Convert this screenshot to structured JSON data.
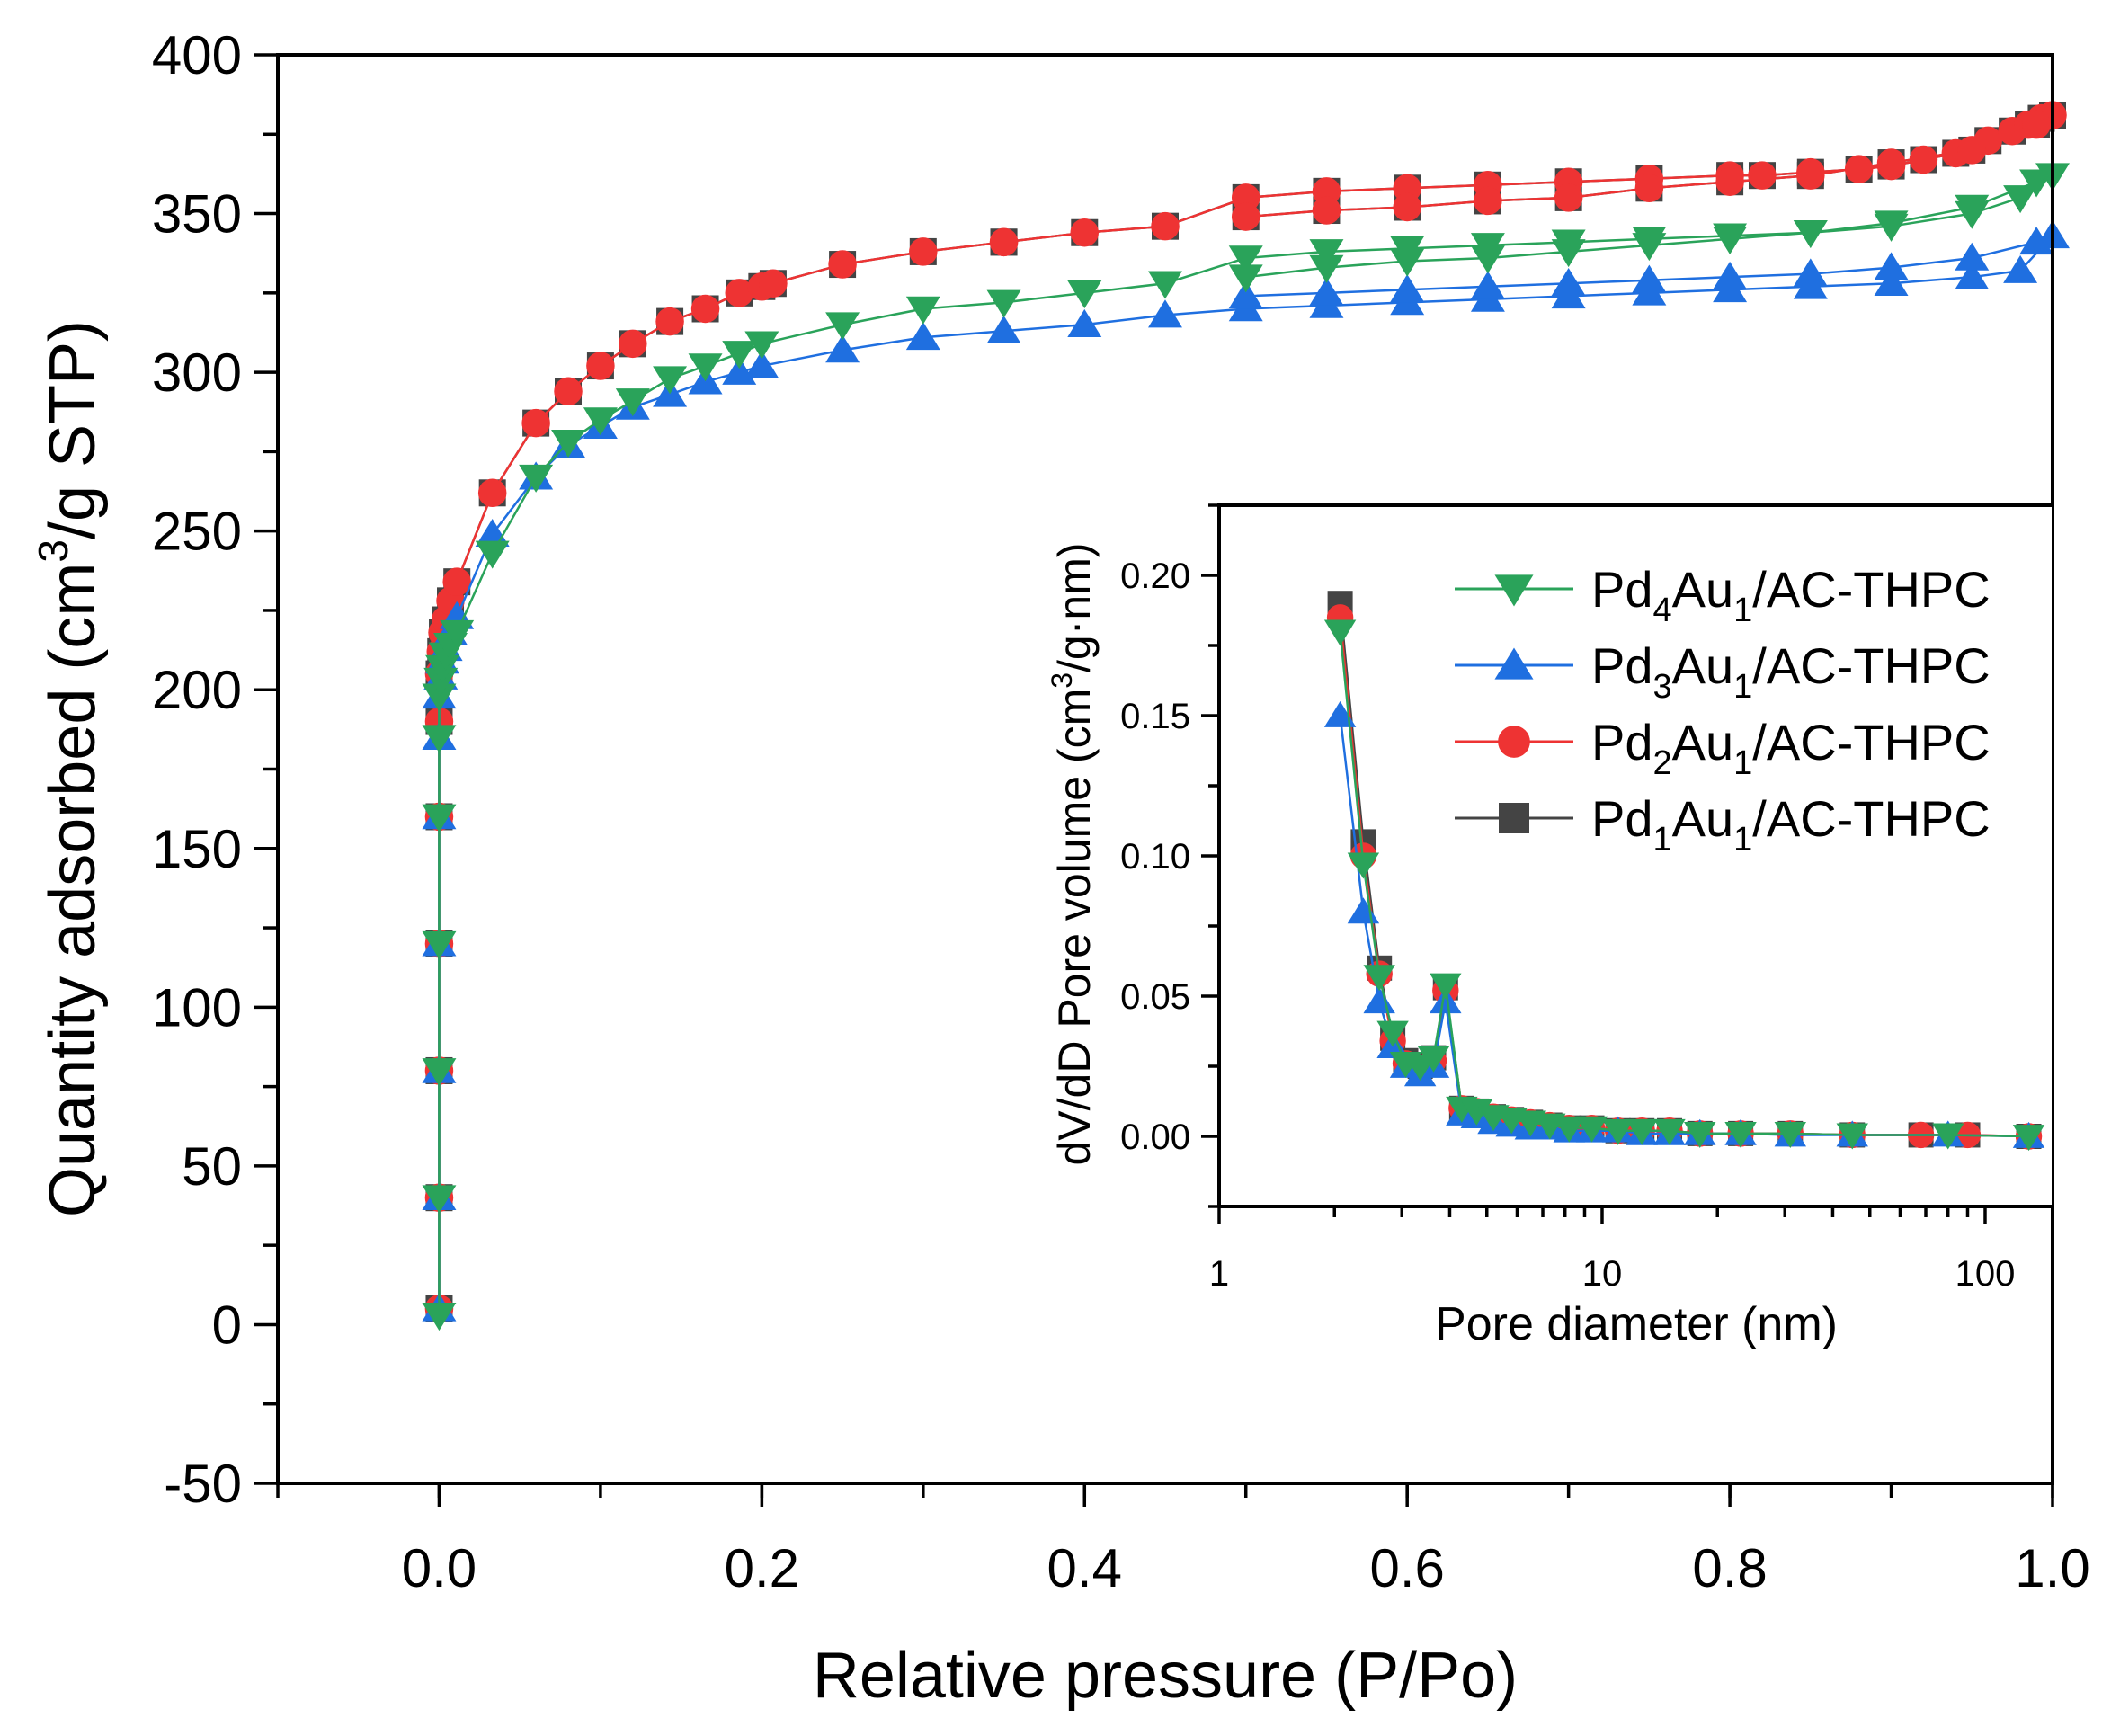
{
  "chart_data": [
    {
      "id": "main",
      "type": "line",
      "xlabel": "Relative pressure (P/Po)",
      "ylabel_parts": [
        "Quantity adsorbed (cm",
        "3",
        "/g STP)"
      ],
      "xlim": [
        -0.1,
        1.0
      ],
      "ylim": [
        -50,
        400
      ],
      "xticks": [
        0.0,
        0.2,
        0.4,
        0.6,
        0.8,
        1.0
      ],
      "xtick_labels": [
        "0.0",
        "0.2",
        "0.4",
        "0.6",
        "0.8",
        "1.0"
      ],
      "yticks": [
        -50,
        0,
        50,
        100,
        150,
        200,
        250,
        300,
        350,
        400
      ],
      "ytick_labels": [
        "-50",
        "0",
        "50",
        "100",
        "150",
        "200",
        "250",
        "300",
        "350",
        "400"
      ],
      "series": [
        {
          "name": "Pd1Au1/AC-THPC",
          "color": "#444444",
          "marker": "square",
          "x": [
            0.0,
            0.0,
            0.0,
            0.0,
            0.0,
            0.0,
            0.0,
            0.001,
            0.002,
            0.004,
            0.007,
            0.011,
            0.033,
            0.06,
            0.08,
            0.1,
            0.12,
            0.143,
            0.165,
            0.186,
            0.2,
            0.207,
            0.25,
            0.3,
            0.35,
            0.35,
            0.4,
            0.45,
            0.5,
            0.55,
            0.6,
            0.65,
            0.7,
            0.75,
            0.8,
            0.82,
            0.85,
            0.88,
            0.9,
            0.92,
            0.94,
            0.96,
            0.975,
            0.985,
            0.993,
            1.0,
            0.99,
            0.95,
            0.9,
            0.85,
            0.8,
            0.75,
            0.7,
            0.65,
            0.6,
            0.55,
            0.5
          ],
          "y": [
            5,
            40,
            80,
            120,
            160,
            190,
            205,
            212,
            218,
            222,
            228,
            234,
            262,
            284,
            294,
            302,
            309,
            316,
            320,
            325,
            327,
            328,
            334,
            338,
            341,
            341,
            344,
            346,
            355,
            357,
            358,
            359,
            360,
            361,
            362,
            362,
            363,
            364,
            365,
            367,
            369,
            373,
            376,
            378,
            380,
            381,
            378,
            370,
            366,
            362,
            360,
            358,
            355,
            354,
            352,
            351,
            349
          ]
        },
        {
          "name": "Pd2Au1/AC-THPC",
          "color": "#ee3333",
          "marker": "circle",
          "x": [
            0.0,
            0.0,
            0.0,
            0.0,
            0.0,
            0.0,
            0.0,
            0.001,
            0.002,
            0.004,
            0.007,
            0.011,
            0.033,
            0.06,
            0.08,
            0.1,
            0.12,
            0.143,
            0.165,
            0.186,
            0.2,
            0.207,
            0.25,
            0.3,
            0.35,
            0.35,
            0.4,
            0.45,
            0.5,
            0.55,
            0.6,
            0.65,
            0.7,
            0.75,
            0.8,
            0.82,
            0.85,
            0.88,
            0.9,
            0.92,
            0.94,
            0.96,
            0.975,
            0.985,
            0.993,
            1.0,
            0.99,
            0.95,
            0.9,
            0.85,
            0.8,
            0.75,
            0.7,
            0.65,
            0.6,
            0.55,
            0.5
          ],
          "y": [
            5,
            40,
            80,
            120,
            160,
            190,
            205,
            212,
            218,
            222,
            228,
            234,
            262,
            284,
            294,
            302,
            309,
            316,
            320,
            325,
            327,
            328,
            334,
            338,
            341,
            341,
            344,
            346,
            355,
            357,
            358,
            359,
            360,
            361,
            362,
            362,
            363,
            364,
            365,
            367,
            369,
            373,
            376,
            378,
            380,
            381,
            378,
            370,
            366,
            362,
            360,
            358,
            355,
            354,
            352,
            351,
            349
          ]
        },
        {
          "name": "Pd3Au1/AC-THPC",
          "color": "#1f6fe0",
          "marker": "triangle-up",
          "x": [
            0.0,
            0.0,
            0.0,
            0.0,
            0.0,
            0.0,
            0.0,
            0.001,
            0.002,
            0.004,
            0.007,
            0.011,
            0.033,
            0.06,
            0.08,
            0.1,
            0.12,
            0.143,
            0.165,
            0.186,
            0.2,
            0.25,
            0.3,
            0.35,
            0.4,
            0.45,
            0.5,
            0.55,
            0.6,
            0.65,
            0.7,
            0.75,
            0.8,
            0.85,
            0.9,
            0.95,
            0.98,
            1.0,
            0.99,
            0.95,
            0.9,
            0.85,
            0.8,
            0.75,
            0.7,
            0.65,
            0.6,
            0.55,
            0.5
          ],
          "y": [
            5,
            40,
            80,
            120,
            160,
            185,
            198,
            204,
            209,
            213,
            218,
            223,
            249,
            267,
            277,
            283,
            289,
            293,
            297,
            300,
            302,
            307,
            311,
            313,
            315,
            318,
            320,
            321,
            322,
            323,
            324,
            325,
            326,
            327,
            328,
            330,
            332,
            343,
            341,
            336,
            333,
            331,
            330,
            329,
            328,
            327,
            326,
            325,
            324
          ]
        },
        {
          "name": "Pd4Au1/AC-THPC",
          "color": "#2aa35a",
          "marker": "triangle-down",
          "x": [
            0.0,
            0.0,
            0.0,
            0.0,
            0.0,
            0.0,
            0.0,
            0.001,
            0.002,
            0.004,
            0.007,
            0.011,
            0.033,
            0.06,
            0.08,
            0.1,
            0.12,
            0.143,
            0.165,
            0.186,
            0.2,
            0.25,
            0.3,
            0.35,
            0.4,
            0.45,
            0.5,
            0.55,
            0.6,
            0.65,
            0.7,
            0.75,
            0.8,
            0.85,
            0.9,
            0.95,
            0.98,
            1.0,
            0.99,
            0.95,
            0.9,
            0.85,
            0.8,
            0.75,
            0.7,
            0.65,
            0.6,
            0.55,
            0.5
          ],
          "y": [
            3,
            40,
            80,
            120,
            160,
            185,
            198,
            203,
            207,
            211,
            214,
            218,
            243,
            267,
            278,
            285,
            291,
            298,
            302,
            306,
            309,
            315,
            320,
            322,
            325,
            328,
            336,
            338,
            339,
            340,
            341,
            342,
            343,
            344,
            346,
            350,
            355,
            362,
            360,
            352,
            347,
            344,
            342,
            340,
            338,
            336,
            335,
            333,
            330
          ]
        }
      ]
    },
    {
      "id": "inset",
      "type": "line",
      "xscale": "log",
      "xlabel": "Pore diameter (nm)",
      "ylabel_parts": [
        "dV/dD Pore volume (cm",
        "3",
        "/g·nm)"
      ],
      "xlim": [
        1,
        150
      ],
      "ylim": [
        -0.025,
        0.225
      ],
      "xticks": [
        1,
        10,
        100
      ],
      "xtick_labels": [
        "1",
        "10",
        "100"
      ],
      "yticks": [
        0.0,
        0.05,
        0.1,
        0.15,
        0.2
      ],
      "ytick_labels": [
        "0.00",
        "0.05",
        "0.10",
        "0.15",
        "0.20"
      ],
      "legend": {
        "location": "top-right",
        "entries": [
          {
            "series": "Pd4Au1/AC-THPC",
            "prefix": "Pd",
            "sub1": "4",
            "mid": "Au",
            "sub2": "1",
            "suffix": "/AC-THPC"
          },
          {
            "series": "Pd3Au1/AC-THPC",
            "prefix": "Pd",
            "sub1": "3",
            "mid": "Au",
            "sub2": "1",
            "suffix": "/AC-THPC"
          },
          {
            "series": "Pd2Au1/AC-THPC",
            "prefix": "Pd",
            "sub1": "2",
            "mid": "Au",
            "sub2": "1",
            "suffix": "/AC-THPC"
          },
          {
            "series": "Pd1Au1/AC-THPC",
            "prefix": "Pd",
            "sub1": "1",
            "mid": "Au",
            "sub2": "1",
            "suffix": "/AC-THPC"
          }
        ]
      },
      "series": [
        {
          "name": "Pd1Au1/AC-THPC",
          "color": "#444444",
          "marker": "square",
          "x": [
            2.07,
            2.38,
            2.62,
            2.84,
            3.07,
            3.35,
            3.63,
            3.9,
            4.3,
            4.7,
            5.2,
            5.8,
            6.5,
            7.3,
            8.2,
            9.4,
            11,
            12.7,
            15,
            18,
            23,
            31,
            45,
            68,
            90,
            130
          ],
          "y": [
            0.19,
            0.105,
            0.06,
            0.035,
            0.027,
            0.025,
            0.028,
            0.053,
            0.01,
            0.009,
            0.007,
            0.006,
            0.005,
            0.004,
            0.003,
            0.003,
            0.002,
            0.002,
            0.002,
            0.001,
            0.001,
            0.001,
            0.0005,
            0.0005,
            0.0005,
            0.0
          ]
        },
        {
          "name": "Pd2Au1/AC-THPC",
          "color": "#ee3333",
          "marker": "circle",
          "x": [
            2.07,
            2.38,
            2.62,
            2.84,
            3.07,
            3.35,
            3.63,
            3.9,
            4.3,
            4.7,
            5.2,
            5.8,
            6.5,
            7.3,
            8.2,
            9.4,
            11,
            12.7,
            15,
            18,
            23,
            31,
            45,
            68,
            90,
            130
          ],
          "y": [
            0.185,
            0.1,
            0.058,
            0.034,
            0.026,
            0.024,
            0.027,
            0.052,
            0.01,
            0.009,
            0.007,
            0.006,
            0.005,
            0.004,
            0.003,
            0.003,
            0.002,
            0.002,
            0.002,
            0.001,
            0.001,
            0.001,
            0.0005,
            0.0005,
            0.0005,
            0.0
          ]
        },
        {
          "name": "Pd3Au1/AC-THPC",
          "color": "#1f6fe0",
          "marker": "triangle-up",
          "x": [
            2.07,
            2.38,
            2.62,
            2.84,
            3.07,
            3.35,
            3.63,
            3.9,
            4.3,
            4.7,
            5.2,
            5.8,
            6.5,
            7.3,
            8.2,
            9.4,
            11,
            12.7,
            15,
            18,
            23,
            31,
            45,
            80,
            130
          ],
          "y": [
            0.15,
            0.08,
            0.048,
            0.032,
            0.025,
            0.022,
            0.025,
            0.048,
            0.008,
            0.007,
            0.005,
            0.004,
            0.003,
            0.003,
            0.002,
            0.002,
            0.002,
            0.001,
            0.001,
            0.001,
            0.001,
            0.0005,
            0.0005,
            0.0005,
            0.0
          ]
        },
        {
          "name": "Pd4Au1/AC-THPC",
          "color": "#2aa35a",
          "marker": "triangle-down",
          "x": [
            2.07,
            2.38,
            2.62,
            2.84,
            3.07,
            3.35,
            3.63,
            3.9,
            4.3,
            4.7,
            5.2,
            5.8,
            6.5,
            7.3,
            8.2,
            9.4,
            11,
            12.7,
            15,
            18,
            23,
            31,
            45,
            80,
            130
          ],
          "y": [
            0.18,
            0.097,
            0.057,
            0.037,
            0.026,
            0.025,
            0.028,
            0.054,
            0.01,
            0.009,
            0.007,
            0.006,
            0.005,
            0.004,
            0.003,
            0.003,
            0.002,
            0.002,
            0.002,
            0.001,
            0.001,
            0.001,
            0.0005,
            0.0005,
            0.0
          ]
        }
      ]
    }
  ]
}
